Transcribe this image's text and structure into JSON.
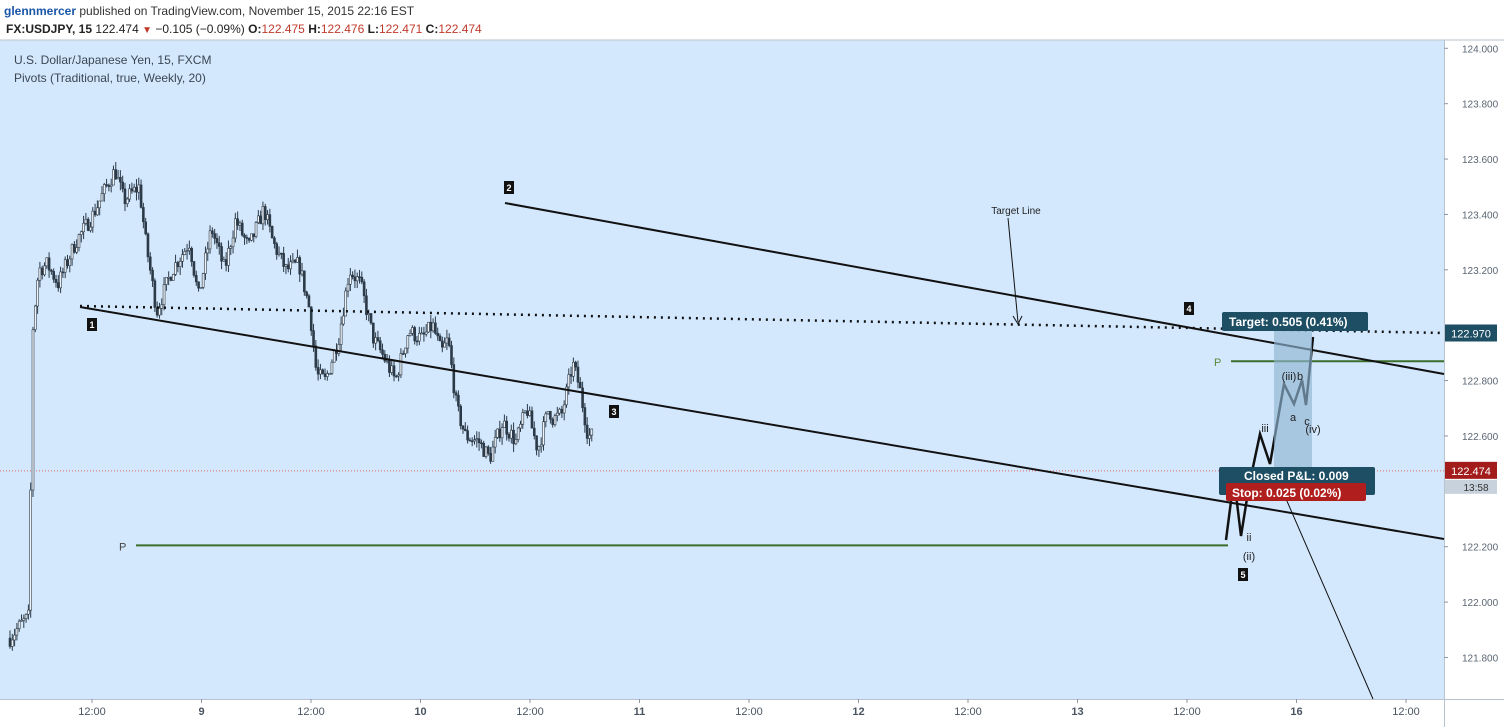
{
  "header": {
    "author": "glennmercer",
    "published_text": "published on TradingView.com, November 15, 2015 22:16 EST",
    "symbol": "FX:USDJPY, 15",
    "last": "122.474",
    "change": "−0.105 (−0.09%)",
    "o_label": "O:",
    "o": "122.475",
    "h_label": "H:",
    "h": "122.476",
    "l_label": "L:",
    "l": "122.471",
    "c_label": "C:",
    "c": "122.474"
  },
  "legend": {
    "title": "U.S. Dollar/Japanese Yen, 15, FXCM",
    "indicator": "Pivots (Traditional, true, Weekly, 20)"
  },
  "colors": {
    "plot_bg": "#d3e8fd",
    "candle": "#2c3a48",
    "trend": "#111111",
    "pivot": "#3b6e2b",
    "price_line": "#e0605a",
    "target_badge": "#1d4e63",
    "stop_badge": "#b01e1e"
  },
  "chart_data": {
    "type": "candlestick",
    "ylim": [
      121.65,
      124.03
    ],
    "y_ticks": [
      "124.000",
      "123.800",
      "123.600",
      "123.400",
      "123.200",
      "122.800",
      "122.600",
      "122.200",
      "122.000",
      "121.800"
    ],
    "x_ticks": [
      "12:00",
      "9",
      "12:00",
      "10",
      "12:00",
      "11",
      "12:00",
      "12",
      "12:00",
      "13",
      "12:00",
      "16",
      "12:00"
    ],
    "last_price": "122.474",
    "axis_overlays": [
      "122.970",
      "13:58"
    ],
    "price_path": [
      [
        0.0,
        121.87
      ],
      [
        0.05,
        121.92
      ],
      [
        0.09,
        121.95
      ],
      [
        0.1,
        122.95
      ],
      [
        0.13,
        123.2
      ],
      [
        0.17,
        123.22
      ],
      [
        0.22,
        123.15
      ],
      [
        0.3,
        123.3
      ],
      [
        0.38,
        123.4
      ],
      [
        0.44,
        123.5
      ],
      [
        0.48,
        123.56
      ],
      [
        0.52,
        123.45
      ],
      [
        0.56,
        123.48
      ],
      [
        0.59,
        123.5
      ],
      [
        0.62,
        123.3
      ],
      [
        0.67,
        123.05
      ],
      [
        0.74,
        123.2
      ],
      [
        0.82,
        123.3
      ],
      [
        0.86,
        123.1
      ],
      [
        0.92,
        123.35
      ],
      [
        0.98,
        123.2
      ],
      [
        1.03,
        123.38
      ],
      [
        1.09,
        123.28
      ],
      [
        1.16,
        123.42
      ],
      [
        1.2,
        123.3
      ],
      [
        1.26,
        123.2
      ],
      [
        1.32,
        123.22
      ],
      [
        1.37,
        123.05
      ],
      [
        1.4,
        122.82
      ],
      [
        1.44,
        122.8
      ],
      [
        1.5,
        122.95
      ],
      [
        1.55,
        123.2
      ],
      [
        1.6,
        123.15
      ],
      [
        1.66,
        122.95
      ],
      [
        1.71,
        122.88
      ],
      [
        1.76,
        122.8
      ],
      [
        1.82,
        122.98
      ],
      [
        1.88,
        122.95
      ],
      [
        1.93,
        123.0
      ],
      [
        1.97,
        122.9
      ],
      [
        2.0,
        122.95
      ],
      [
        2.04,
        122.7
      ],
      [
        2.08,
        122.6
      ],
      [
        2.14,
        122.58
      ],
      [
        2.19,
        122.52
      ],
      [
        2.25,
        122.65
      ],
      [
        2.31,
        122.58
      ],
      [
        2.36,
        122.7
      ],
      [
        2.41,
        122.55
      ],
      [
        2.46,
        122.7
      ],
      [
        2.48,
        122.66
      ],
      [
        2.52,
        122.68
      ],
      [
        2.57,
        122.86
      ],
      [
        2.6,
        122.78
      ],
      [
        2.64,
        122.6
      ],
      [
        2.66,
        122.6
      ]
    ],
    "waves": {
      "l1": "1",
      "l2": "2",
      "l3": "3",
      "l4": "4",
      "l5": "5",
      "ii": "ii",
      "ii_paren": "(ii)",
      "iii": "iii",
      "iii_paren": "(iii)",
      "a": "a",
      "b": "b",
      "c": "c",
      "iv_paren": "(iv)"
    },
    "target_line": {
      "label": "Target Line",
      "price": 122.97
    },
    "pivot_label": "P",
    "pivots": [
      122.205,
      122.87
    ],
    "position": {
      "target": "Target: 0.505 (0.41%)",
      "pnl": "Closed P&L: 0.009",
      "stop": "Stop: 0.025 (0.02%)"
    }
  }
}
